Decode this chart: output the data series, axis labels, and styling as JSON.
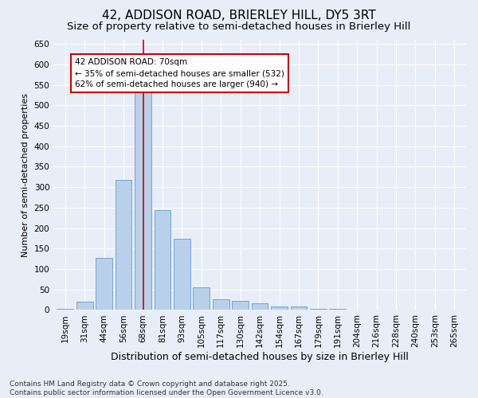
{
  "title": "42, ADDISON ROAD, BRIERLEY HILL, DY5 3RT",
  "subtitle": "Size of property relative to semi-detached houses in Brierley Hill",
  "xlabel": "Distribution of semi-detached houses by size in Brierley Hill",
  "ylabel": "Number of semi-detached properties",
  "categories": [
    "19sqm",
    "31sqm",
    "44sqm",
    "56sqm",
    "68sqm",
    "81sqm",
    "93sqm",
    "105sqm",
    "117sqm",
    "130sqm",
    "142sqm",
    "154sqm",
    "167sqm",
    "179sqm",
    "191sqm",
    "204sqm",
    "216sqm",
    "228sqm",
    "240sqm",
    "253sqm",
    "265sqm"
  ],
  "values": [
    3,
    20,
    128,
    318,
    535,
    243,
    173,
    55,
    27,
    22,
    16,
    8,
    8,
    2,
    2,
    1,
    1,
    0,
    1,
    0,
    1
  ],
  "bar_color": "#b8d0ea",
  "bar_edge_color": "#6699cc",
  "highlight_index": 4,
  "highlight_line_color": "#cc0000",
  "ylim": [
    0,
    660
  ],
  "yticks": [
    0,
    50,
    100,
    150,
    200,
    250,
    300,
    350,
    400,
    450,
    500,
    550,
    600,
    650
  ],
  "annotation_text": "42 ADDISON ROAD: 70sqm\n← 35% of semi-detached houses are smaller (532)\n62% of semi-detached houses are larger (940) →",
  "annotation_box_color": "#ffffff",
  "annotation_box_edge_color": "#cc0000",
  "bg_color": "#e8eef7",
  "plot_bg_color": "#e8eef7",
  "footer_text": "Contains HM Land Registry data © Crown copyright and database right 2025.\nContains public sector information licensed under the Open Government Licence v3.0.",
  "title_fontsize": 11,
  "subtitle_fontsize": 9.5,
  "xlabel_fontsize": 9,
  "ylabel_fontsize": 8,
  "tick_fontsize": 7.5,
  "annotation_fontsize": 7.5,
  "footer_fontsize": 6.5
}
